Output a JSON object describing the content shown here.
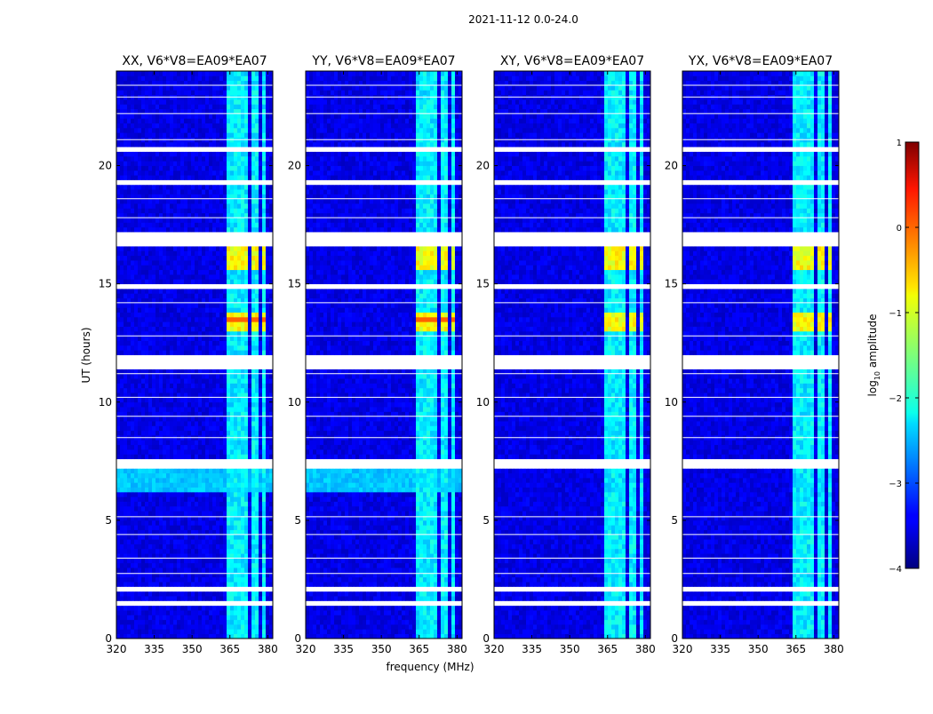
{
  "chart_data": {
    "type": "heatmap",
    "suptitle": "2021-11-12 0.0-24.0",
    "xlabel": "frequency (MHz)",
    "ylabel": "UT (hours)",
    "xlim": [
      320,
      382
    ],
    "ylim": [
      0,
      24
    ],
    "xticks": [
      320,
      335,
      350,
      365,
      380
    ],
    "yticks": [
      0,
      5,
      10,
      15,
      20
    ],
    "panels": [
      {
        "title": "XX, V6*V8=EA09*EA07",
        "polarization": "XX"
      },
      {
        "title": "YY, V6*V8=EA09*EA07",
        "polarization": "YY"
      },
      {
        "title": "XY, V6*V8=EA09*EA07",
        "polarization": "XY"
      },
      {
        "title": "YX, V6*V8=EA09*EA07",
        "polarization": "YX"
      }
    ],
    "colorbar": {
      "label": "log10 amplitude",
      "label_main": "log",
      "label_sub": "10",
      "label_rest": " amplitude",
      "range": [
        -4,
        1
      ],
      "ticks": [
        "1",
        "0",
        "−1",
        "−2",
        "−3",
        "−4"
      ],
      "tick_values": [
        1,
        0,
        -1,
        -2,
        -3,
        -4
      ],
      "colormap": "jet"
    },
    "rfi_band_mhz": [
      363,
      379
    ],
    "rfi_channels_mhz": [
      [
        363,
        367.5
      ],
      [
        368.5,
        372.5
      ],
      [
        373.5,
        377
      ],
      [
        377.8,
        379.5
      ]
    ],
    "bright_intervals_ut": [
      [
        13.0,
        13.9
      ],
      [
        15.7,
        16.7
      ]
    ],
    "flag_intervals_ut": [
      [
        1.4,
        1.55
      ],
      [
        2.0,
        2.3
      ],
      [
        7.2,
        7.4
      ],
      [
        7.5,
        7.6
      ],
      [
        11.5,
        12.0
      ],
      [
        14.9,
        15.05
      ],
      [
        16.7,
        17.1
      ],
      [
        19.3,
        19.45
      ],
      [
        20.55,
        20.75
      ]
    ],
    "background_level": -3.5
  }
}
